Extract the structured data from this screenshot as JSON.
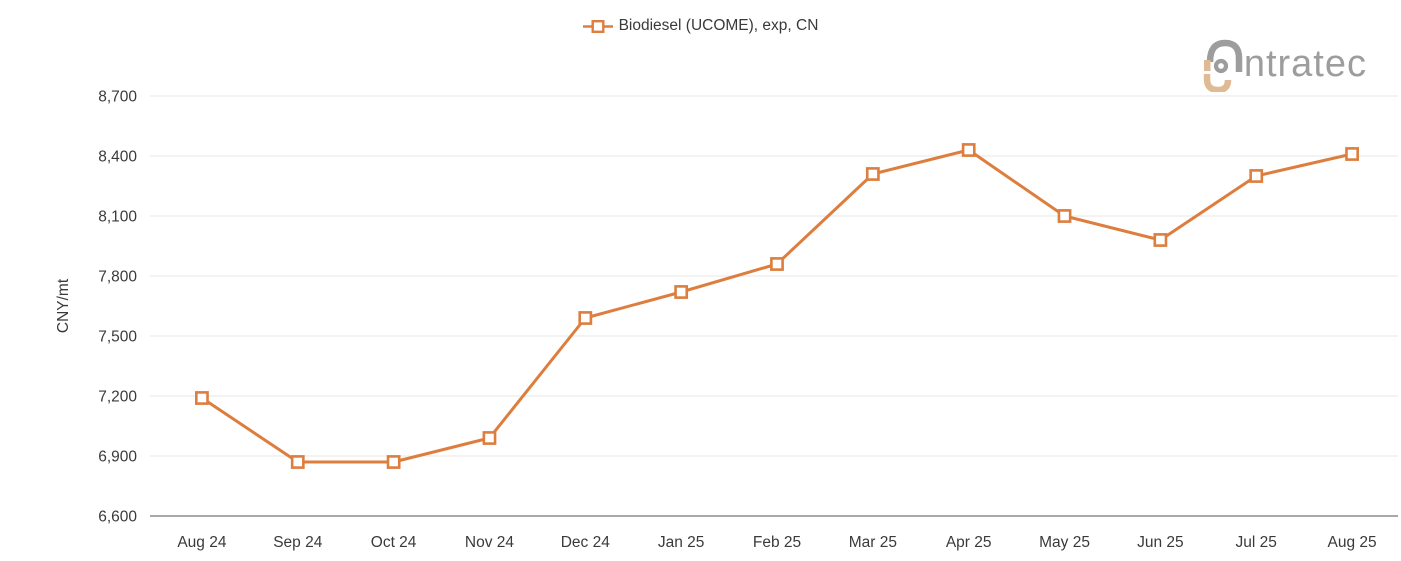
{
  "legend": {
    "label": "Biodiesel (UCOME), exp, CN"
  },
  "logo": {
    "text": "ntratec",
    "gray": "#9d9d9d",
    "tan": "#e0ba95"
  },
  "colors": {
    "series": "#DD7E3E",
    "grid": "#ececec",
    "axis_line": "#8c8c8c",
    "text": "#3a3a3a"
  },
  "chart_data": {
    "type": "line",
    "title": "",
    "categories": [
      "Aug 24",
      "Sep 24",
      "Oct 24",
      "Nov 24",
      "Dec 24",
      "Jan 25",
      "Feb 25",
      "Mar 25",
      "Apr 25",
      "May 25",
      "Jun 25",
      "Jul 25",
      "Aug 25"
    ],
    "series": [
      {
        "name": "Biodiesel (UCOME), exp, CN",
        "values": [
          7190,
          6870,
          6870,
          6990,
          7590,
          7720,
          7860,
          8310,
          8430,
          8100,
          7980,
          8300,
          8410
        ]
      }
    ],
    "xlabel": "",
    "ylabel": "CNY/mt",
    "ylim": [
      6600,
      8700
    ],
    "y_ticks": [
      8700,
      8400,
      8100,
      7800,
      7500,
      7200,
      6900,
      6600
    ],
    "grid": true,
    "legend_position": "top-center",
    "marker": "square"
  }
}
